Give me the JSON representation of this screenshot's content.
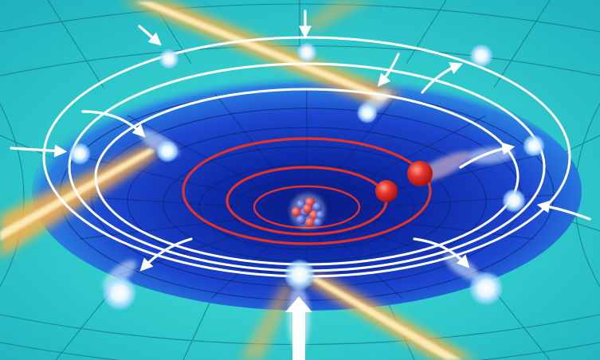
{
  "scene": {
    "subject": "gravity-well-funnel-with-nucleus",
    "palette": {
      "outer_field": "#2fd3d2",
      "outer_field_light": "#79ece6",
      "well_center": "#0a1f9a",
      "well_mid": "#1f4fd6",
      "grid_line": "#0f5a6a",
      "orbit_white": "#ffffff",
      "orbit_red": "#e2332b",
      "beam_orange": "#ff9e2a",
      "beam_glow": "#ffd27a",
      "particle_blue": "#e8f6ff",
      "particle_red": "#e2332b",
      "nucleon_red": "#d63a3a",
      "nucleon_blue": "#3a5bd9"
    },
    "icons": [
      "arrow-icon",
      "particle-icon",
      "nucleus-icon",
      "light-beam-icon"
    ]
  }
}
